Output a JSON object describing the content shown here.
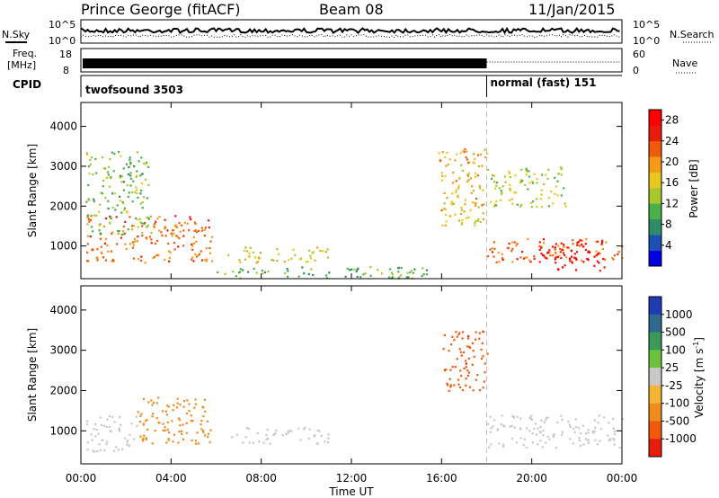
{
  "header": {
    "station": "Prince George (fitACF)",
    "beam": "Beam 08",
    "date": "11/Jan/2015"
  },
  "top_panels": {
    "nsky_label": "N.Sky",
    "nsearch_label": "N.Search",
    "noise_ticks": [
      "10^5",
      "10^0"
    ],
    "freq_label_1": "Freq.",
    "freq_label_2": "[MHz]",
    "freq_ticks": [
      "18",
      "8"
    ],
    "nave_label": "Nave",
    "nave_ticks": [
      "60",
      "0"
    ],
    "cpid_label": "CPID",
    "cpid_segments": [
      {
        "name": "twofsound 3503",
        "start_h": 0.0,
        "end_h": 18.0
      },
      {
        "name": "normal (fast) 151",
        "start_h": 18.0,
        "end_h": 24.0
      }
    ]
  },
  "time_axis": {
    "label": "Time UT",
    "ticks": [
      "00:00",
      "04:00",
      "08:00",
      "12:00",
      "16:00",
      "20:00",
      "00:00"
    ],
    "range_hours": [
      0,
      24
    ]
  },
  "chart_data": [
    {
      "type": "heatmap",
      "title": "",
      "ylabel": "Slant Range [km]",
      "xlim_hours": [
        0,
        24
      ],
      "ylim_km": [
        180,
        4600
      ],
      "yticks": [
        "1000",
        "2000",
        "3000",
        "4000"
      ],
      "colorbar": {
        "label": "Power [dB]",
        "ticks": [
          "28",
          "24",
          "20",
          "16",
          "12",
          "8",
          "4"
        ],
        "range": [
          0,
          30
        ],
        "colors": [
          "#0000e0",
          "#1e50b4",
          "#2e8c6a",
          "#4ab04a",
          "#a6c82c",
          "#e6c81e",
          "#f49a14",
          "#f05a0c",
          "#e81c0c",
          "#ff0000"
        ]
      },
      "regions": [
        {
          "x0": 0.2,
          "x1": 5.8,
          "y0": 600,
          "y1": 1800,
          "v": 22
        },
        {
          "x0": 0.2,
          "x1": 3.0,
          "y0": 1300,
          "y1": 3400,
          "v": 12
        },
        {
          "x0": 6.5,
          "x1": 11.0,
          "y0": 600,
          "y1": 1000,
          "v": 16
        },
        {
          "x0": 6.0,
          "x1": 15.5,
          "y0": 200,
          "y1": 500,
          "v": 10
        },
        {
          "x0": 15.8,
          "x1": 18.0,
          "y0": 1500,
          "y1": 3500,
          "v": 18
        },
        {
          "x0": 18.0,
          "x1": 24.0,
          "y0": 600,
          "y1": 1200,
          "v": 22
        },
        {
          "x0": 20.2,
          "x1": 23.2,
          "y0": 400,
          "y1": 1200,
          "v": 29
        },
        {
          "x0": 18.0,
          "x1": 21.5,
          "y0": 2000,
          "y1": 3000,
          "v": 14
        }
      ]
    },
    {
      "type": "heatmap",
      "title": "",
      "ylabel": "Slant Range [km]",
      "xlim_hours": [
        0,
        24
      ],
      "ylim_km": [
        180,
        4600
      ],
      "yticks": [
        "1000",
        "2000",
        "3000",
        "4000"
      ],
      "colorbar": {
        "label": "Velocity [m s",
        "label_sup": "-1",
        "label_end": "]",
        "ticks": [
          "1000",
          "500",
          "100",
          "25",
          "-25",
          "-100",
          "-500",
          "-1000"
        ],
        "colors": [
          "#1e3cb4",
          "#2e6a8c",
          "#3a9a5a",
          "#6cc23c",
          "#c8c8c8",
          "#f4b432",
          "#f08c1e",
          "#f05a0c",
          "#e81c0c"
        ]
      },
      "regions": [
        {
          "x0": 0.2,
          "x1": 2.5,
          "y0": 500,
          "y1": 1400,
          "v": 0
        },
        {
          "x0": 2.5,
          "x1": 5.8,
          "y0": 700,
          "y1": 1900,
          "v": -300
        },
        {
          "x0": 6.5,
          "x1": 11.0,
          "y0": 700,
          "y1": 1100,
          "v": 0
        },
        {
          "x0": 16.0,
          "x1": 18.0,
          "y0": 2000,
          "y1": 3500,
          "v": -800
        },
        {
          "x0": 18.0,
          "x1": 24.0,
          "y0": 600,
          "y1": 1400,
          "v": 0
        }
      ]
    }
  ]
}
